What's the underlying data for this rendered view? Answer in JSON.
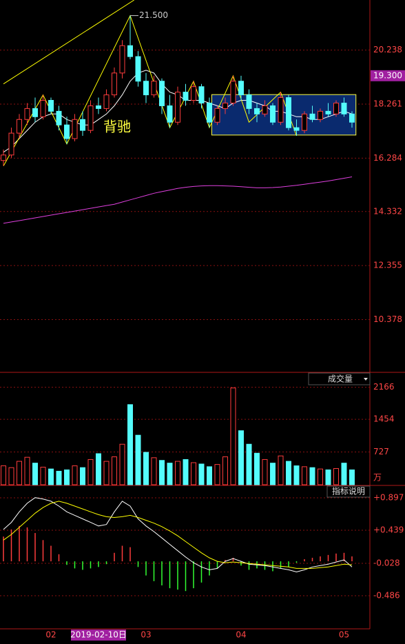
{
  "chart_data": [
    {
      "type": "candlestick",
      "open": [
        16.2,
        16.4,
        17.2,
        17.7,
        18.1,
        17.8,
        18.4,
        18.0,
        17.5,
        17.0,
        17.7,
        17.3,
        18.2,
        18.1,
        18.6,
        19.4,
        20.4,
        20.0,
        19.1,
        18.6,
        19.1,
        18.2,
        17.6,
        18.7,
        18.4,
        18.9,
        18.3,
        17.6,
        18.1,
        18.3,
        19.1,
        18.6,
        18.1,
        17.9,
        18.2,
        17.6,
        18.5,
        17.4,
        17.3,
        17.9,
        17.7,
        18.0,
        17.9,
        18.3,
        17.9
      ],
      "high": [
        16.6,
        17.4,
        17.9,
        18.3,
        18.5,
        18.6,
        18.5,
        18.2,
        17.8,
        17.9,
        18.0,
        18.4,
        18.5,
        18.8,
        19.6,
        20.6,
        21.5,
        20.2,
        19.4,
        19.3,
        19.2,
        18.6,
        18.9,
        19.0,
        19.1,
        19.0,
        18.5,
        18.2,
        18.5,
        19.3,
        19.3,
        18.8,
        18.3,
        18.4,
        18.3,
        18.7,
        18.6,
        17.7,
        18.0,
        18.2,
        18.1,
        18.3,
        18.4,
        18.5,
        18.0
      ],
      "low": [
        16.0,
        16.3,
        17.0,
        17.5,
        17.6,
        17.7,
        17.9,
        17.3,
        16.8,
        16.9,
        17.1,
        17.2,
        17.9,
        18.0,
        18.5,
        19.2,
        19.9,
        18.9,
        18.3,
        18.5,
        17.9,
        17.4,
        17.5,
        18.2,
        18.3,
        18.1,
        17.4,
        17.5,
        17.9,
        18.2,
        18.4,
        17.9,
        17.6,
        17.8,
        17.5,
        17.5,
        17.3,
        17.1,
        17.2,
        17.6,
        17.6,
        17.8,
        17.8,
        17.8,
        17.4
      ],
      "close": [
        16.4,
        17.2,
        17.7,
        18.1,
        17.8,
        18.4,
        18.0,
        17.5,
        17.0,
        17.7,
        17.3,
        18.2,
        18.1,
        18.6,
        19.4,
        20.4,
        20.0,
        19.1,
        18.6,
        19.1,
        18.2,
        17.6,
        18.7,
        18.4,
        18.9,
        18.3,
        17.6,
        18.1,
        18.3,
        19.1,
        18.6,
        18.1,
        17.9,
        18.2,
        17.6,
        18.5,
        17.4,
        17.3,
        17.9,
        17.7,
        18.0,
        17.9,
        18.3,
        17.9,
        17.6
      ],
      "up_color": "#ff3c3c",
      "down_color": "#54fcfc",
      "lines": [
        {
          "color": "#ffffff",
          "values": [
            16.5,
            16.7,
            17.0,
            17.3,
            17.6,
            17.8,
            17.9,
            17.9,
            17.7,
            17.6,
            17.5,
            17.5,
            17.7,
            17.9,
            18.2,
            18.6,
            19.1,
            19.4,
            19.5,
            19.4,
            19.0,
            18.7,
            18.6,
            18.4,
            18.4,
            18.4,
            18.3,
            18.2,
            18.1,
            18.3,
            18.4,
            18.4,
            18.3,
            18.2,
            18.0,
            18.0,
            17.9,
            17.8,
            17.8,
            17.7,
            17.7,
            17.8,
            17.9,
            18.0,
            17.9
          ]
        },
        {
          "color": "#e040e0",
          "values": [
            13.9,
            13.95,
            14.0,
            14.05,
            14.1,
            14.15,
            14.2,
            14.25,
            14.3,
            14.35,
            14.4,
            14.45,
            14.5,
            14.55,
            14.6,
            14.68,
            14.76,
            14.84,
            14.92,
            15.0,
            15.06,
            15.12,
            15.18,
            15.22,
            15.25,
            15.27,
            15.28,
            15.28,
            15.27,
            15.26,
            15.24,
            15.22,
            15.2,
            15.2,
            15.21,
            15.23,
            15.26,
            15.29,
            15.33,
            15.37,
            15.41,
            15.45,
            15.5,
            15.55,
            15.6
          ]
        }
      ],
      "zigzag": {
        "color": "#ffff00",
        "x": [
          0,
          5,
          8,
          16,
          21,
          24,
          26,
          29,
          31,
          35,
          37
        ],
        "values": [
          16.0,
          18.6,
          16.8,
          21.5,
          17.4,
          19.1,
          17.4,
          19.3,
          17.6,
          18.7,
          17.1
        ]
      },
      "trendline": {
        "color": "#ffff00",
        "x": [
          0,
          16.5
        ],
        "values": [
          19.0,
          22.07
        ]
      },
      "box": {
        "xlim": [
          26.3,
          44.5
        ],
        "ylim": [
          17.13,
          18.61
        ],
        "fill": "#0a2a6e",
        "stroke": "#ffff40"
      },
      "ylim": [
        8.45,
        22.07
      ],
      "yticks": [
        20.238,
        18.261,
        16.284,
        14.332,
        12.355,
        10.378
      ],
      "price_marker": {
        "value": 19.3,
        "label": "19.300",
        "color": "#a020a0"
      },
      "peak_label": {
        "x": 16,
        "value": 21.5,
        "label": "21.500"
      },
      "annotation": "背驰"
    },
    {
      "type": "volume",
      "title": "成交量",
      "unit": "万",
      "values": [
        420,
        380,
        520,
        610,
        480,
        390,
        350,
        300,
        330,
        420,
        380,
        560,
        690,
        520,
        620,
        900,
        1780,
        1100,
        720,
        600,
        540,
        480,
        520,
        560,
        490,
        460,
        400,
        450,
        620,
        2150,
        1200,
        900,
        700,
        560,
        480,
        640,
        520,
        420,
        400,
        380,
        350,
        330,
        360,
        480,
        330
      ],
      "ylim": [
        0,
        2390
      ],
      "yticks": [
        2166,
        1454,
        727
      ]
    },
    {
      "type": "macd",
      "title": "指标说明",
      "histogram": [
        0.35,
        0.45,
        0.5,
        0.48,
        0.4,
        0.3,
        0.22,
        0.1,
        -0.05,
        -0.1,
        -0.12,
        -0.1,
        -0.08,
        -0.04,
        0.12,
        0.22,
        0.2,
        -0.08,
        -0.2,
        -0.28,
        -0.34,
        -0.38,
        -0.4,
        -0.42,
        -0.38,
        -0.3,
        -0.2,
        -0.1,
        0.02,
        0.05,
        -0.06,
        -0.12,
        -0.1,
        -0.12,
        -0.14,
        -0.1,
        -0.08,
        -0.02,
        0.03,
        0.05,
        0.07,
        0.09,
        0.11,
        0.12,
        0.07
      ],
      "pos_color": "#ff3c3c",
      "neg_color": "#32ff32",
      "lines": [
        {
          "color": "#ffffff",
          "values": [
            0.45,
            0.55,
            0.7,
            0.82,
            0.9,
            0.88,
            0.85,
            0.78,
            0.7,
            0.65,
            0.6,
            0.55,
            0.5,
            0.52,
            0.7,
            0.85,
            0.78,
            0.6,
            0.5,
            0.42,
            0.33,
            0.24,
            0.15,
            0.06,
            -0.02,
            -0.08,
            -0.12,
            -0.1,
            0.0,
            0.04,
            0.0,
            -0.04,
            -0.05,
            -0.06,
            -0.08,
            -0.1,
            -0.12,
            -0.15,
            -0.12,
            -0.08,
            -0.06,
            -0.04,
            -0.01,
            0.02,
            -0.08
          ]
        },
        {
          "color": "#ffff00",
          "values": [
            0.3,
            0.38,
            0.48,
            0.58,
            0.68,
            0.76,
            0.82,
            0.85,
            0.82,
            0.78,
            0.74,
            0.7,
            0.66,
            0.63,
            0.62,
            0.63,
            0.65,
            0.62,
            0.58,
            0.54,
            0.49,
            0.43,
            0.36,
            0.28,
            0.2,
            0.12,
            0.05,
            0.0,
            -0.02,
            -0.01,
            -0.02,
            -0.03,
            -0.04,
            -0.05,
            -0.06,
            -0.07,
            -0.08,
            -0.1,
            -0.1,
            -0.1,
            -0.09,
            -0.08,
            -0.06,
            -0.04,
            -0.05
          ]
        }
      ],
      "ylim": [
        -0.954,
        1.063
      ],
      "yticks": [
        {
          "value": 0.897,
          "label": "+0.897"
        },
        {
          "value": 0.439,
          "label": "+0.439"
        },
        {
          "value": -0.028,
          "label": "-0.028"
        },
        {
          "value": -0.486,
          "label": "-0.486"
        }
      ],
      "categories": [
        null,
        null,
        null,
        null,
        null,
        null,
        "02",
        null,
        null,
        null,
        null,
        null,
        "2019-02-10日",
        null,
        null,
        null,
        null,
        null,
        "03",
        null,
        null,
        null,
        null,
        null,
        null,
        null,
        null,
        null,
        null,
        null,
        "04",
        null,
        null,
        null,
        null,
        null,
        null,
        null,
        null,
        null,
        null,
        null,
        null,
        "05",
        null
      ],
      "highlight": {
        "index": 12,
        "color": "#a020a0"
      }
    }
  ]
}
